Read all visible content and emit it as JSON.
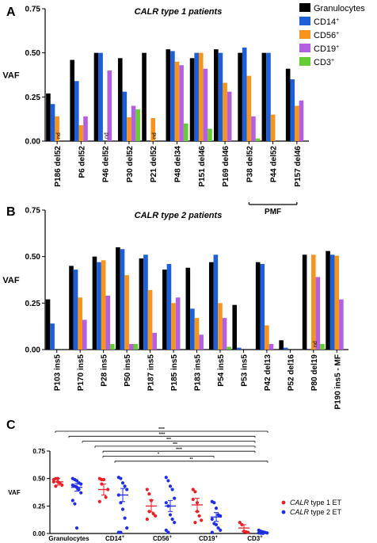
{
  "panels": {
    "A": {
      "letter": "A",
      "legend": {
        "items": [
          {
            "name": "Granulocytes",
            "color": "#000000"
          },
          {
            "name": "CD14",
            "sup": "+",
            "color": "#1f5fd6"
          },
          {
            "name": "CD56",
            "sup": "+",
            "color": "#f7941d"
          },
          {
            "name": "CD19",
            "sup": "+",
            "color": "#b45fe0"
          },
          {
            "name": "CD3",
            "sup": "+",
            "color": "#66cc33"
          }
        ]
      },
      "bracket_label": "PMF"
    },
    "B": {
      "letter": "B"
    },
    "C": {
      "letter": "C",
      "legend": {
        "items": [
          {
            "italic": "CALR",
            "rest": " type 1 ET",
            "color": "#e8202a"
          },
          {
            "italic": "CALR",
            "rest": " type 2 ET",
            "color": "#1f2ee0"
          }
        ]
      }
    }
  },
  "chart_data": [
    {
      "type": "bar",
      "title_italic": "CALR type 1",
      "title_rest": " patients",
      "ylabel": "VAF",
      "ylim": [
        0,
        0.75
      ],
      "yticks": [
        "0.00",
        "0.25",
        "0.50",
        "0.75"
      ],
      "categories": [
        "P186 del52",
        "P6 del52",
        "P46 del52",
        "P30 del52",
        "P21 del52",
        "P48 del34",
        "P151 del46",
        "P169 del46",
        "P38 del52",
        "P44 del52",
        "P157 del46"
      ],
      "series": [
        {
          "name": "Granulocytes",
          "values": [
            0.27,
            0.46,
            0.5,
            0.47,
            0.5,
            0.52,
            0.47,
            0.52,
            0.5,
            0.5,
            0.41
          ]
        },
        {
          "name": "CD14+",
          "values": [
            0.21,
            0.34,
            0.5,
            0.28,
            0,
            0.51,
            0.5,
            0.5,
            0.53,
            0.5,
            0.35
          ]
        },
        {
          "name": "CD56+",
          "values": [
            0.14,
            0.09,
            0,
            0.135,
            0.13,
            0.45,
            0.5,
            0.33,
            0.37,
            0.15,
            0.2
          ]
        },
        {
          "name": "CD19+",
          "values": [
            0,
            0.14,
            0.4,
            0.2,
            0,
            0.43,
            0.41,
            0.28,
            0.14,
            0,
            0.23
          ]
        },
        {
          "name": "CD3+",
          "values": [
            0,
            0,
            0,
            0.18,
            0,
            0.1,
            0.07,
            0,
            0.015,
            0,
            0
          ]
        }
      ],
      "annotations": [
        {
          "category": "P186 del52",
          "text": "nd"
        },
        {
          "category": "P46 del52",
          "text": "nd"
        },
        {
          "category": "P21 del52",
          "text": "nd"
        }
      ],
      "bracket": {
        "from": "P38 del52",
        "to": "P157 del46",
        "label": "PMF"
      }
    },
    {
      "type": "bar",
      "title_italic": "CALR type 2",
      "title_rest": " patients",
      "ylabel": "VAF",
      "ylim": [
        0,
        0.75
      ],
      "yticks": [
        "0.00",
        "0.25",
        "0.50",
        "0.75"
      ],
      "categories": [
        "P103 ins5",
        "P170 ins5",
        "P28 ins5",
        "P50 ins5",
        "P187 ins5",
        "P185 ins5",
        "P183 ins5",
        "P54 ins5",
        "P53 ins5",
        "P42 del13",
        "P52 del16",
        "P80 del19",
        "P190 ins5 - MF"
      ],
      "series": [
        {
          "name": "Granulocytes",
          "values": [
            0.27,
            0.45,
            0.5,
            0.55,
            0.49,
            0.43,
            0.44,
            0.47,
            0.24,
            0.47,
            0.05,
            0.51,
            0.53
          ]
        },
        {
          "name": "CD14+",
          "values": [
            0.14,
            0.43,
            0.47,
            0.54,
            0.51,
            0.46,
            0.22,
            0.51,
            0.01,
            0.46,
            0.01,
            0,
            0.51
          ]
        },
        {
          "name": "CD56+",
          "values": [
            0,
            0.28,
            0.48,
            0.4,
            0.32,
            0.25,
            0.17,
            0.25,
            0,
            0.13,
            0,
            0.51,
            0.505
          ]
        },
        {
          "name": "CD19+",
          "values": [
            0,
            0.16,
            0.29,
            0.03,
            0.09,
            0.28,
            0.08,
            0.17,
            0,
            0.03,
            0,
            0.39,
            0.27
          ]
        },
        {
          "name": "CD3+",
          "values": [
            0,
            0,
            0.03,
            0.03,
            0,
            0,
            0,
            0.015,
            0,
            0,
            0,
            0.03,
            0
          ]
        }
      ],
      "annotations": [
        {
          "category": "P80 del19",
          "text": "nd"
        }
      ]
    },
    {
      "type": "scatter",
      "ylabel": "VAF",
      "ylim": [
        0,
        0.75
      ],
      "yticks": [
        "0.00",
        "0.25",
        "0.50",
        "0.75"
      ],
      "categories": [
        "Granulocytes",
        "CD14",
        "CD56",
        "CD19",
        "CD3"
      ],
      "category_sups": [
        "",
        "+",
        "+",
        "+",
        "+"
      ],
      "series": [
        {
          "name": "CALR type 1 ET",
          "mean": [
            0.47,
            0.4,
            0.25,
            0.26,
            0.05
          ],
          "sem": [
            0.03,
            0.05,
            0.055,
            0.06,
            0.03
          ],
          "values": [
            [
              0.49,
              0.5,
              0.47,
              0.46,
              0.44,
              0.47,
              0.43,
              0.5
            ],
            [
              0.5,
              0.49,
              0.49,
              0.33,
              0.4,
              0.29,
              0.45,
              0.49
            ],
            [
              0.4,
              0.36,
              0.3,
              0.18,
              0.16,
              0.13,
              0.2
            ],
            [
              0.4,
              0.38,
              0.28,
              0.16,
              0.12,
              0.31,
              0.1,
              0.2
            ],
            [
              0.1,
              0.08,
              0.02,
              0.015,
              0.01
            ]
          ]
        },
        {
          "name": "CALR type 2 ET",
          "mean": [
            0.42,
            0.35,
            0.25,
            0.15,
            0.01
          ],
          "sem": [
            0.035,
            0.06,
            0.05,
            0.04,
            0.005
          ],
          "values": [
            [
              0.5,
              0.49,
              0.48,
              0.46,
              0.45,
              0.44,
              0.43,
              0.42,
              0.4,
              0.37,
              0.3,
              0.27,
              0.05
            ],
            [
              0.51,
              0.5,
              0.46,
              0.43,
              0.4,
              0.35,
              0.28,
              0.22,
              0.14,
              0.05,
              0.01,
              0.01
            ],
            [
              0.51,
              0.48,
              0.43,
              0.4,
              0.32,
              0.28,
              0.25,
              0.17,
              0.13,
              0.1,
              0.03,
              0.01
            ],
            [
              0.29,
              0.28,
              0.23,
              0.17,
              0.16,
              0.13,
              0.09,
              0.08,
              0.05,
              0.03,
              0.01
            ],
            [
              0.03,
              0.02,
              0.015,
              0.01,
              0.005,
              0.005,
              0.003,
              0.002
            ]
          ]
        }
      ],
      "significance": [
        {
          "from": 0,
          "to": 4,
          "label": "****"
        },
        {
          "from": 0,
          "to": 4,
          "label": "****"
        },
        {
          "from": 0,
          "to": 4,
          "label": "***"
        },
        {
          "from": 0,
          "to": 4,
          "label": "***"
        },
        {
          "from": 1,
          "to": 4,
          "label": "****"
        },
        {
          "from": 1,
          "to": 3,
          "label": "*"
        },
        {
          "from": 1,
          "to": 4,
          "label": "**"
        }
      ]
    }
  ]
}
